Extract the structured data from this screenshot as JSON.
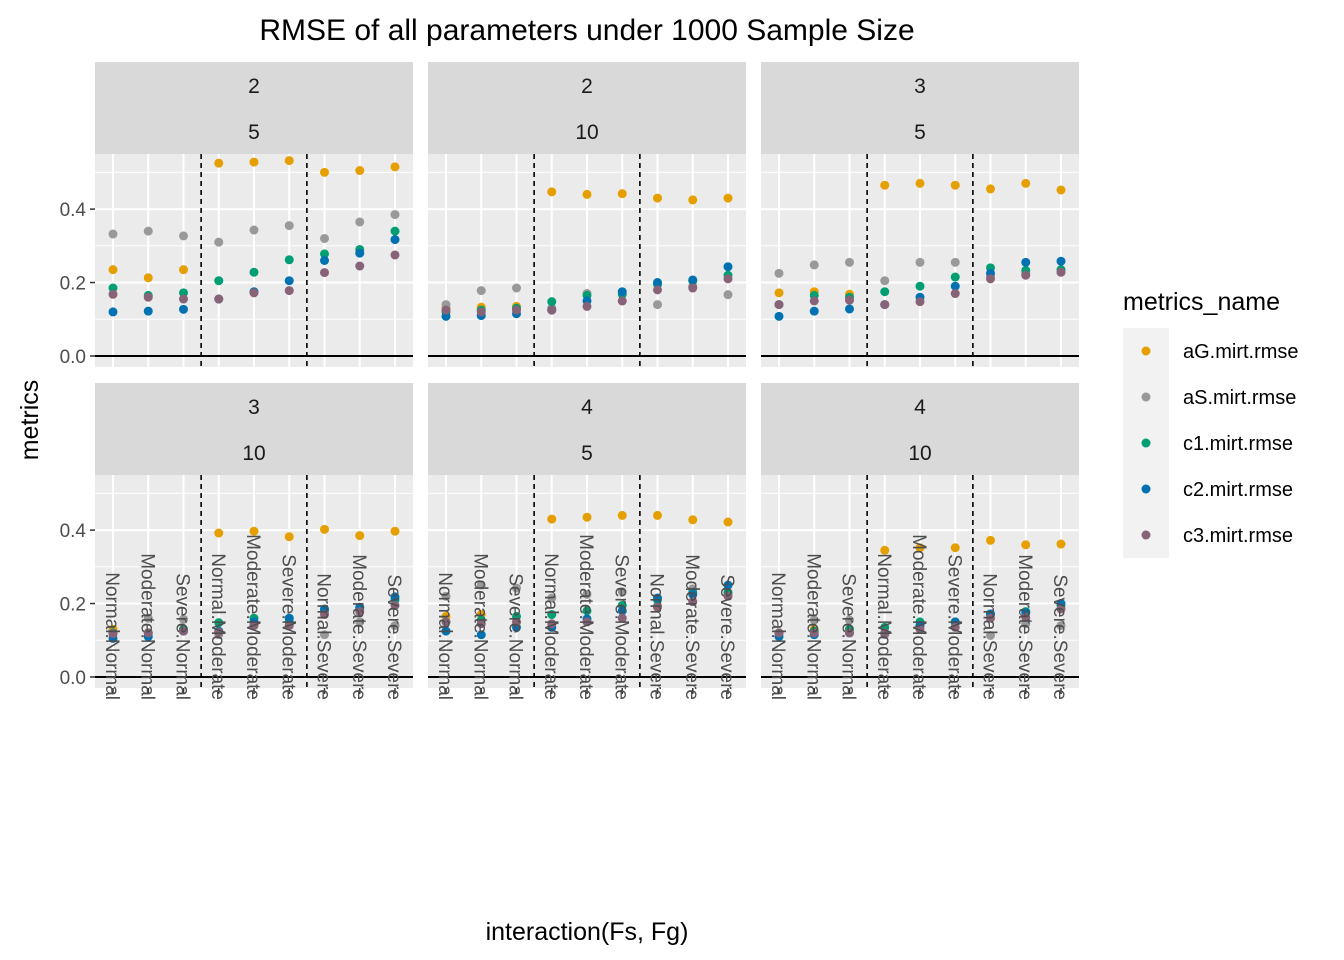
{
  "chart_data": {
    "type": "scatter",
    "title": "RMSE of all parameters under 1000 Sample Size",
    "xlabel": "interaction(Fs, Fg)",
    "ylabel": "metrics",
    "categories": [
      "Normal.Normal",
      "Moderate.Normal",
      "Severe.Normal",
      "Normal.Moderate",
      "Moderate.Moderate",
      "Severe.Moderate",
      "Normal.Severe",
      "Moderate.Severe",
      "Severe.Severe"
    ],
    "ylim": [
      -0.03,
      0.55
    ],
    "yticks": [
      "0.0",
      "0.2",
      "0.4"
    ],
    "grid": true,
    "legend": {
      "title": "metrics_name",
      "position": "right",
      "entries": [
        {
          "name": "aG.mirt.rmse",
          "color": "#E69F00"
        },
        {
          "name": "aS.mirt.rmse",
          "color": "#999999"
        },
        {
          "name": "c1.mirt.rmse",
          "color": "#009E73"
        },
        {
          "name": "c2.mirt.rmse",
          "color": "#0072B2"
        },
        {
          "name": "c3.mirt.rmse",
          "color": "#886277"
        }
      ]
    },
    "panels": [
      {
        "strip": [
          "2",
          "5"
        ],
        "series": [
          {
            "name": "aG.mirt.rmse",
            "values": [
              0.235,
              0.213,
              0.235,
              0.525,
              0.528,
              0.532,
              0.5,
              0.505,
              0.515
            ]
          },
          {
            "name": "aS.mirt.rmse",
            "values": [
              0.332,
              0.34,
              0.327,
              0.31,
              0.343,
              0.355,
              0.32,
              0.365,
              0.385
            ]
          },
          {
            "name": "c1.mirt.rmse",
            "values": [
              0.185,
              0.165,
              0.172,
              0.205,
              0.228,
              0.262,
              0.278,
              0.29,
              0.34
            ]
          },
          {
            "name": "c2.mirt.rmse",
            "values": [
              0.12,
              0.122,
              0.127,
              0.155,
              0.175,
              0.205,
              0.26,
              0.28,
              0.317
            ]
          },
          {
            "name": "c3.mirt.rmse",
            "values": [
              0.168,
              0.16,
              0.155,
              0.155,
              0.172,
              0.178,
              0.227,
              0.245,
              0.275
            ]
          }
        ]
      },
      {
        "strip": [
          "2",
          "10"
        ],
        "series": [
          {
            "name": "aG.mirt.rmse",
            "values": [
              0.13,
              0.133,
              0.135,
              0.447,
              0.44,
              0.442,
              0.43,
              0.425,
              0.43
            ]
          },
          {
            "name": "aS.mirt.rmse",
            "values": [
              0.14,
              0.178,
              0.185,
              0.13,
              0.17,
              0.15,
              0.14,
              0.19,
              0.167
            ]
          },
          {
            "name": "c1.mirt.rmse",
            "values": [
              0.12,
              0.125,
              0.13,
              0.148,
              0.165,
              0.168,
              0.195,
              0.205,
              0.22
            ]
          },
          {
            "name": "c2.mirt.rmse",
            "values": [
              0.108,
              0.11,
              0.115,
              0.125,
              0.15,
              0.175,
              0.2,
              0.207,
              0.243
            ]
          },
          {
            "name": "c3.mirt.rmse",
            "values": [
              0.125,
              0.12,
              0.125,
              0.125,
              0.135,
              0.15,
              0.18,
              0.185,
              0.21
            ]
          }
        ]
      },
      {
        "strip": [
          "3",
          "5"
        ],
        "series": [
          {
            "name": "aG.mirt.rmse",
            "values": [
              0.172,
              0.175,
              0.168,
              0.465,
              0.47,
              0.465,
              0.455,
              0.47,
              0.452
            ]
          },
          {
            "name": "aS.mirt.rmse",
            "values": [
              0.225,
              0.248,
              0.255,
              0.205,
              0.255,
              0.255,
              0.215,
              0.225,
              0.228
            ]
          },
          {
            "name": "c1.mirt.rmse",
            "values": [
              0.14,
              0.165,
              0.16,
              0.175,
              0.19,
              0.215,
              0.24,
              0.233,
              0.235
            ]
          },
          {
            "name": "c2.mirt.rmse",
            "values": [
              0.108,
              0.122,
              0.128,
              0.14,
              0.16,
              0.19,
              0.225,
              0.255,
              0.258
            ]
          },
          {
            "name": "c3.mirt.rmse",
            "values": [
              0.14,
              0.15,
              0.152,
              0.14,
              0.148,
              0.17,
              0.21,
              0.22,
              0.228
            ]
          }
        ]
      },
      {
        "strip": [
          "3",
          "10"
        ],
        "series": [
          {
            "name": "aG.mirt.rmse",
            "values": [
              0.13,
              0.12,
              0.13,
              0.392,
              0.397,
              0.382,
              0.402,
              0.385,
              0.397
            ]
          },
          {
            "name": "aS.mirt.rmse",
            "values": [
              0.12,
              0.16,
              0.157,
              0.115,
              0.145,
              0.16,
              0.115,
              0.15,
              0.14
            ]
          },
          {
            "name": "c1.mirt.rmse",
            "values": [
              0.12,
              0.12,
              0.13,
              0.148,
              0.16,
              0.15,
              0.18,
              0.19,
              0.21
            ]
          },
          {
            "name": "c2.mirt.rmse",
            "values": [
              0.105,
              0.11,
              0.125,
              0.125,
              0.15,
              0.16,
              0.185,
              0.188,
              0.218
            ]
          },
          {
            "name": "c3.mirt.rmse",
            "values": [
              0.118,
              0.12,
              0.125,
              0.122,
              0.14,
              0.14,
              0.17,
              0.178,
              0.195
            ]
          }
        ]
      },
      {
        "strip": [
          "4",
          "5"
        ],
        "series": [
          {
            "name": "aG.mirt.rmse",
            "values": [
              0.165,
              0.17,
              0.15,
              0.43,
              0.435,
              0.44,
              0.44,
              0.428,
              0.422
            ]
          },
          {
            "name": "aS.mirt.rmse",
            "values": [
              0.22,
              0.25,
              0.242,
              0.215,
              0.225,
              0.232,
              0.195,
              0.24,
              0.225
            ]
          },
          {
            "name": "c1.mirt.rmse",
            "values": [
              0.15,
              0.155,
              0.165,
              0.17,
              0.18,
              0.195,
              0.21,
              0.23,
              0.23
            ]
          },
          {
            "name": "c2.mirt.rmse",
            "values": [
              0.125,
              0.115,
              0.135,
              0.135,
              0.158,
              0.18,
              0.215,
              0.225,
              0.25
            ]
          },
          {
            "name": "c3.mirt.rmse",
            "values": [
              0.15,
              0.145,
              0.15,
              0.145,
              0.15,
              0.16,
              0.19,
              0.205,
              0.22
            ]
          }
        ]
      },
      {
        "strip": [
          "4",
          "10"
        ],
        "series": [
          {
            "name": "aG.mirt.rmse",
            "values": [
              0.12,
              0.13,
              0.13,
              0.345,
              0.352,
              0.352,
              0.372,
              0.36,
              0.362
            ]
          },
          {
            "name": "aS.mirt.rmse",
            "values": [
              0.12,
              0.155,
              0.155,
              0.115,
              0.14,
              0.15,
              0.113,
              0.145,
              0.14
            ]
          },
          {
            "name": "c1.mirt.rmse",
            "values": [
              0.12,
              0.125,
              0.13,
              0.135,
              0.15,
              0.148,
              0.17,
              0.178,
              0.195
            ]
          },
          {
            "name": "c2.mirt.rmse",
            "values": [
              0.11,
              0.115,
              0.12,
              0.12,
              0.14,
              0.15,
              0.172,
              0.175,
              0.2
            ]
          },
          {
            "name": "c3.mirt.rmse",
            "values": [
              0.12,
              0.12,
              0.12,
              0.12,
              0.13,
              0.135,
              0.16,
              0.162,
              0.185
            ]
          }
        ]
      }
    ]
  }
}
